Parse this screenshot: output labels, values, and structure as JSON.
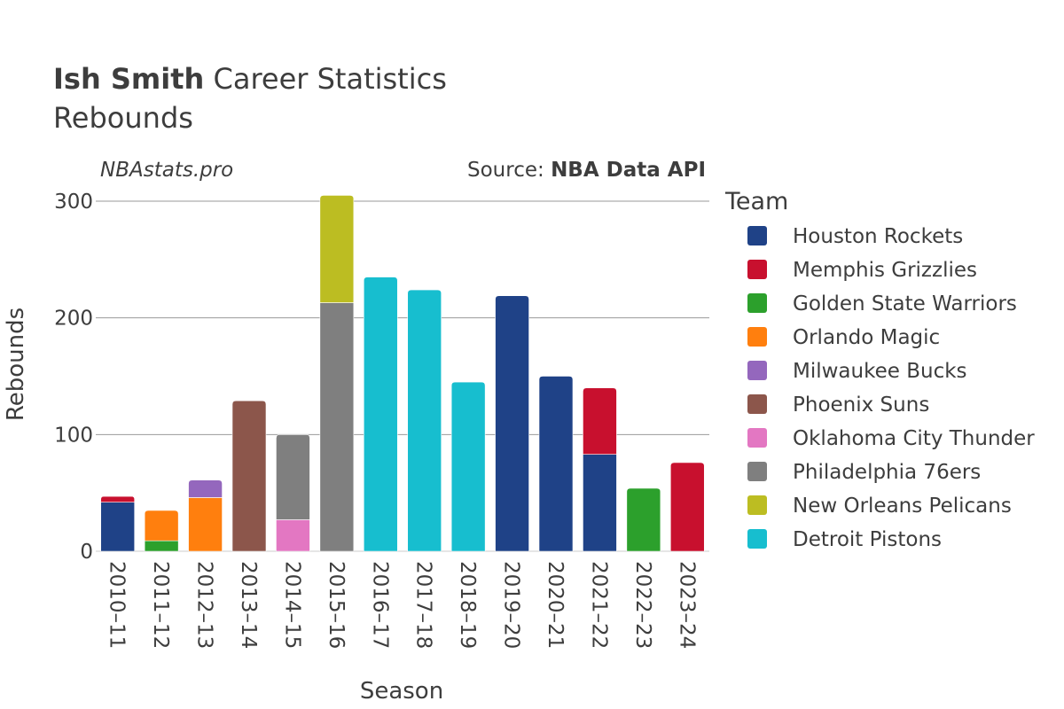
{
  "header": {
    "title_bold": "Ish Smith",
    "title_rest": " Career Statistics",
    "subtitle": "Rebounds",
    "site": "NBAstats.pro",
    "source_prefix": "Source: ",
    "source_name": "NBA Data API"
  },
  "chart_data": {
    "type": "bar",
    "stacked": true,
    "xlabel": "Season",
    "ylabel": "Rebounds",
    "ylim": [
      0,
      305
    ],
    "yticks": [
      0,
      100,
      200,
      300
    ],
    "grid": true,
    "legend_title": "Team",
    "legend_placement": "right",
    "categories": [
      "2010–11",
      "2011–12",
      "2012–13",
      "2013–14",
      "2014–15",
      "2015–16",
      "2016–17",
      "2017–18",
      "2018–19",
      "2019–20",
      "2020–21",
      "2021–22",
      "2022–23",
      "2023–24"
    ],
    "series": [
      {
        "name": "Houston Rockets",
        "color": "#1f4287",
        "values": [
          42,
          0,
          0,
          0,
          0,
          0,
          0,
          0,
          0,
          219,
          150,
          83,
          0,
          0
        ]
      },
      {
        "name": "Memphis Grizzlies",
        "color": "#c8102e",
        "values": [
          5,
          0,
          0,
          0,
          0,
          0,
          0,
          0,
          0,
          0,
          0,
          57,
          0,
          76
        ]
      },
      {
        "name": "Golden State Warriors",
        "color": "#2ca02c",
        "values": [
          0,
          9,
          0,
          0,
          0,
          0,
          0,
          0,
          0,
          0,
          0,
          0,
          54,
          0
        ]
      },
      {
        "name": "Orlando Magic",
        "color": "#ff7f0e",
        "values": [
          0,
          26,
          46,
          0,
          0,
          0,
          0,
          0,
          0,
          0,
          0,
          0,
          0,
          0
        ]
      },
      {
        "name": "Milwaukee Bucks",
        "color": "#9467bd",
        "values": [
          0,
          0,
          15,
          0,
          0,
          0,
          0,
          0,
          0,
          0,
          0,
          0,
          0,
          0
        ]
      },
      {
        "name": "Phoenix Suns",
        "color": "#8c564b",
        "values": [
          0,
          0,
          0,
          129,
          0,
          0,
          0,
          0,
          0,
          0,
          0,
          0,
          0,
          0
        ]
      },
      {
        "name": "Oklahoma City Thunder",
        "color": "#e377c2",
        "values": [
          0,
          0,
          0,
          0,
          27,
          0,
          0,
          0,
          0,
          0,
          0,
          0,
          0,
          0
        ]
      },
      {
        "name": "Philadelphia 76ers",
        "color": "#7f7f7f",
        "values": [
          0,
          0,
          0,
          0,
          73,
          213,
          0,
          0,
          0,
          0,
          0,
          0,
          0,
          0
        ]
      },
      {
        "name": "New Orleans Pelicans",
        "color": "#bcbd22",
        "values": [
          0,
          0,
          0,
          0,
          0,
          92,
          0,
          0,
          0,
          0,
          0,
          0,
          0,
          0
        ]
      },
      {
        "name": "Detroit Pistons",
        "color": "#17becf",
        "values": [
          0,
          0,
          0,
          0,
          0,
          0,
          235,
          224,
          145,
          0,
          0,
          0,
          0,
          0
        ]
      }
    ]
  }
}
